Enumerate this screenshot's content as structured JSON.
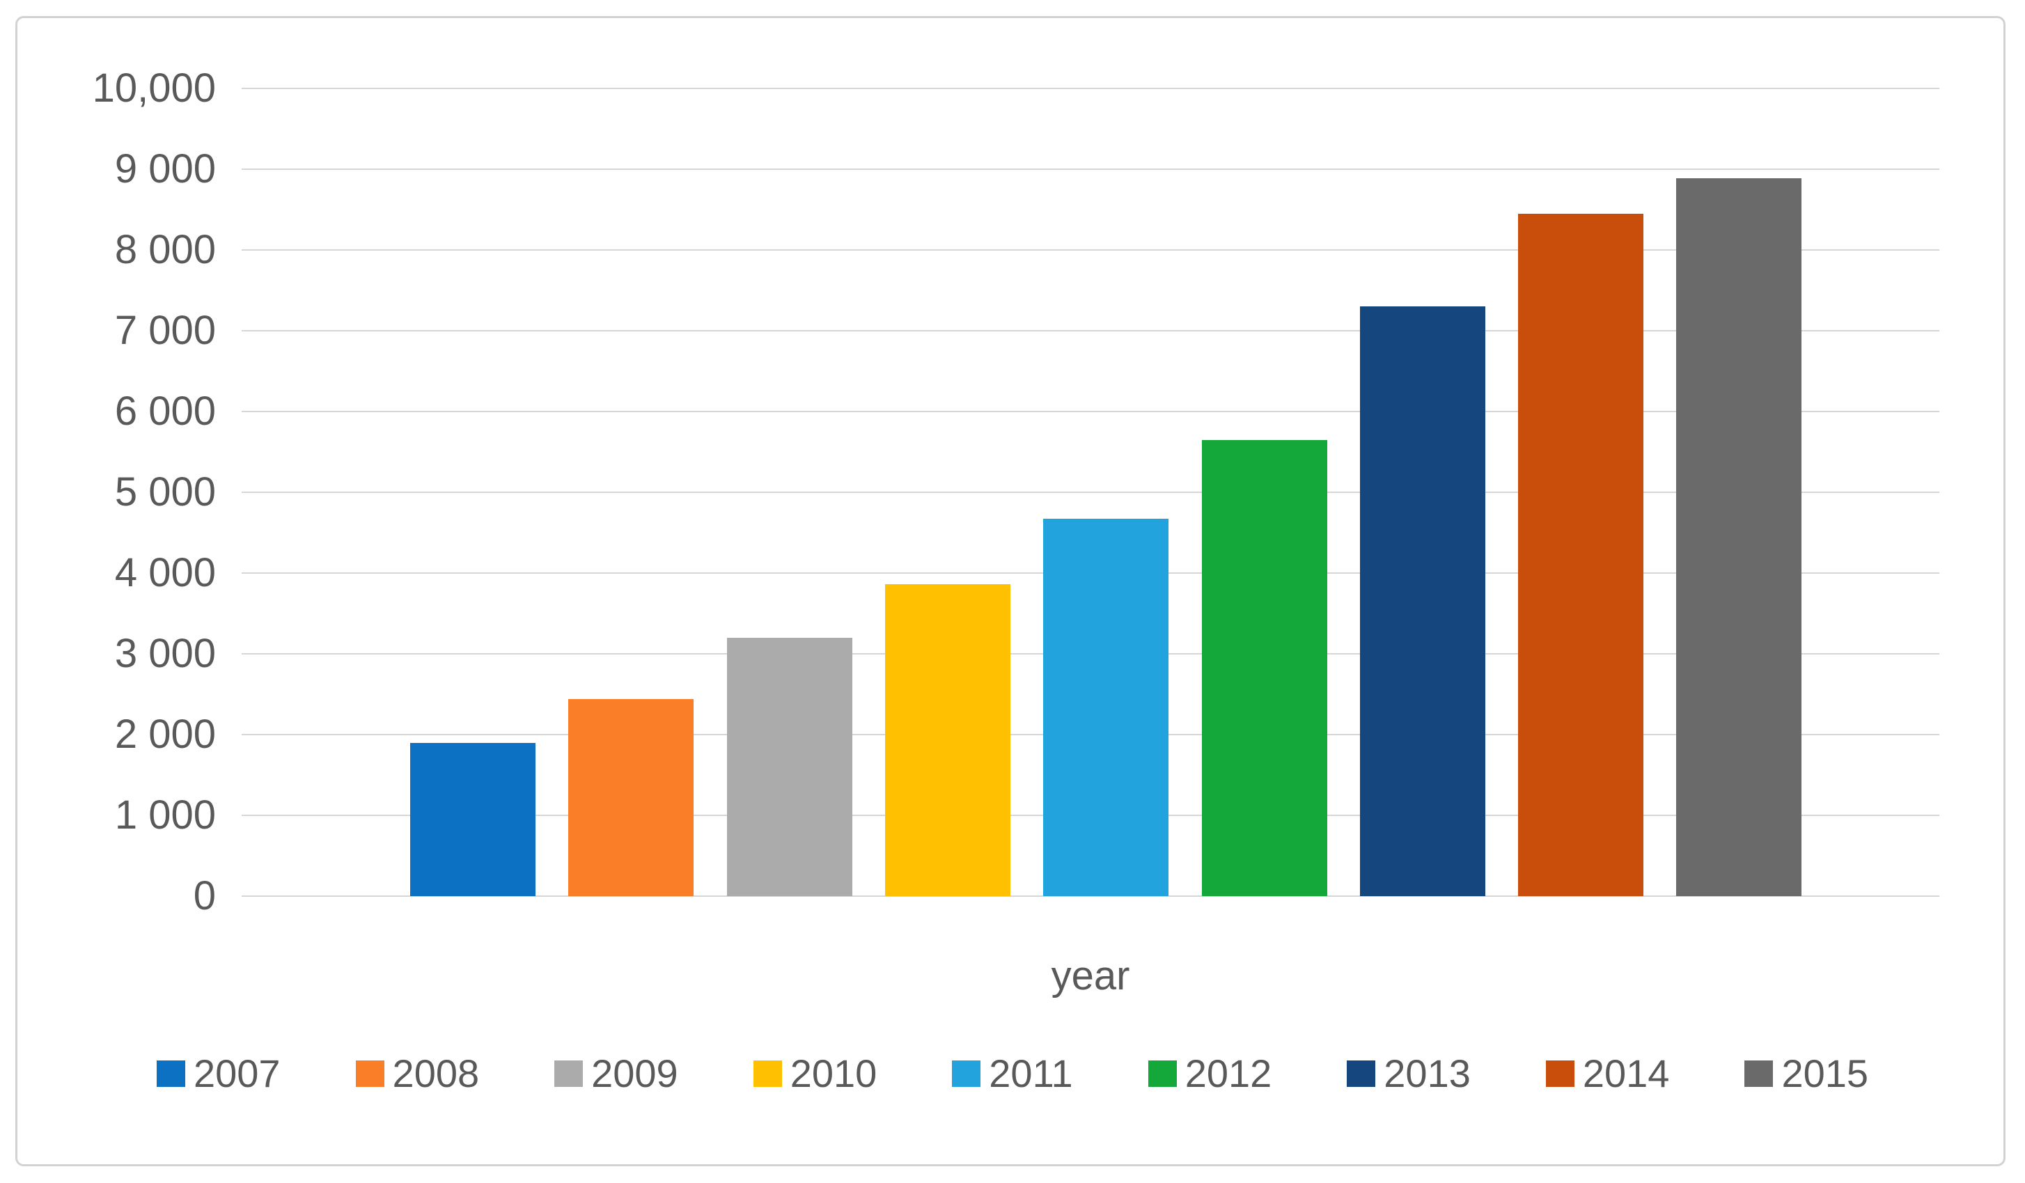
{
  "chart_data": {
    "type": "bar",
    "title": "",
    "xlabel": "year",
    "ylabel": "",
    "categories": [
      "2007",
      "2008",
      "2009",
      "2010",
      "2011",
      "2012",
      "2013",
      "2014",
      "2015"
    ],
    "values": [
      1900,
      2440,
      3200,
      3860,
      4670,
      5650,
      7300,
      8450,
      8890
    ],
    "bar_colors": [
      "#0c70c3",
      "#fa7d27",
      "#ababab",
      "#ffc002",
      "#22a3dd",
      "#14a83b",
      "#15477e",
      "#c94e0c",
      "#6a6a6a"
    ],
    "ylim": [
      0,
      10000
    ],
    "ytick_step": 1000,
    "ytick_labels": [
      "10,000",
      "9 000",
      "8 000",
      "7 000",
      "6 000",
      "5 000",
      "4 000",
      "3 000",
      "2 000",
      "1 000",
      "0"
    ],
    "grid": "horizontal",
    "gridline_color": "#d6d6d6",
    "legend_position": "bottom",
    "legend_entries": [
      "2007",
      "2008",
      "2009",
      "2010",
      "2011",
      "2012",
      "2013",
      "2014",
      "2015"
    ],
    "text_color": "#595959",
    "border_color": "#d2d2d2",
    "background_color": "#ffffff"
  }
}
